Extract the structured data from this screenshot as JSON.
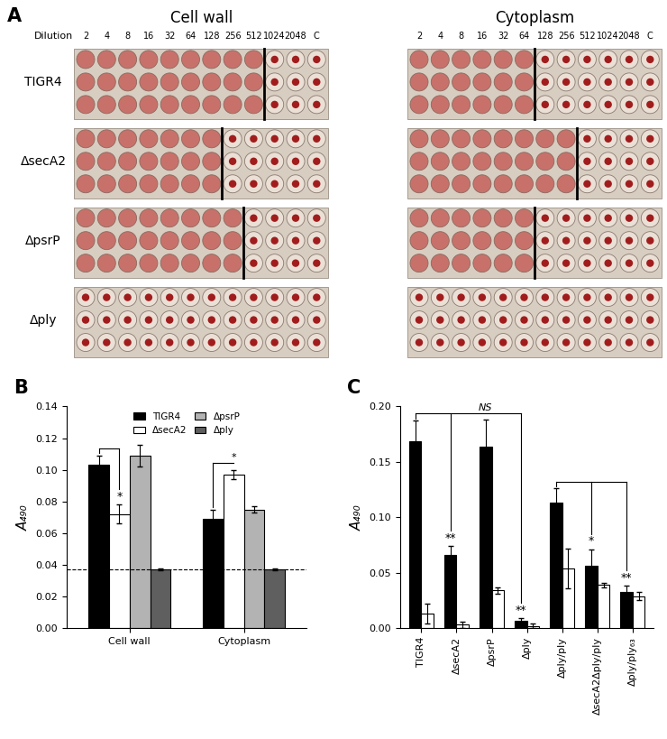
{
  "chart_data": [
    {
      "type": "plate",
      "panel": "A",
      "column_title": "Dilution",
      "columns": [
        "2",
        "4",
        "8",
        "16",
        "32",
        "64",
        "128",
        "256",
        "512",
        "1024",
        "2048",
        "C"
      ],
      "replicates": 3,
      "rows": [
        "TIGR4",
        "ΔsecA2",
        "ΔpsrP",
        "Δply"
      ],
      "fractions": [
        {
          "title": "Cell wall",
          "last_lysed": [
            "512",
            "128",
            "256",
            null
          ]
        },
        {
          "title": "Cytoplasm",
          "last_lysed": [
            "64",
            "256",
            "64",
            null
          ]
        }
      ]
    },
    {
      "type": "bar",
      "panel": "B",
      "y_label": "A₄₉₀",
      "categories": [
        "Cell wall",
        "Cytoplasm"
      ],
      "series": [
        {
          "name": "TIGR4",
          "color": "#000000",
          "values": [
            0.103,
            0.069
          ],
          "errors": [
            0.006,
            0.006
          ]
        },
        {
          "name": "ΔsecA2",
          "color": "#ffffff",
          "values": [
            0.072,
            0.097
          ],
          "errors": [
            0.006,
            0.003
          ]
        },
        {
          "name": "ΔpsrP",
          "color": "#b3b3b3",
          "values": [
            0.109,
            0.075
          ],
          "errors": [
            0.007,
            0.002
          ]
        },
        {
          "name": "Δply",
          "color": "#5f5f5f",
          "values": [
            0.037,
            0.037
          ],
          "errors": [
            0.0005,
            0.0005
          ]
        }
      ],
      "reference_line": 0.037,
      "ylim": [
        0,
        0.14
      ],
      "yticks": [
        {
          "value": 0,
          "label": "0.00"
        },
        {
          "value": 0.02,
          "label": "0.02"
        },
        {
          "value": 0.04,
          "label": "0.04"
        },
        {
          "value": 0.06,
          "label": "0.06"
        },
        {
          "value": 0.08,
          "label": "0.08"
        },
        {
          "value": 0.1,
          "label": "0.10"
        },
        {
          "value": 0.12,
          "label": "0.12"
        },
        {
          "value": 0.14,
          "label": "0.14"
        }
      ],
      "legend": "upper center",
      "comparisons": [
        {
          "category": "Cell wall",
          "from": "TIGR4",
          "to": [
            "ΔsecA2"
          ],
          "labels": [
            "*"
          ]
        },
        {
          "category": "Cytoplasm",
          "from": "TIGR4",
          "to": [
            "ΔsecA2"
          ],
          "labels": [
            "*"
          ]
        }
      ]
    },
    {
      "type": "bar",
      "panel": "C",
      "y_label": "A₄₉₀",
      "categories": [
        "TIGR4",
        "ΔsecA2",
        "ΔpsrP",
        "Δply",
        "Δply/ply",
        "ΔsecA2Δply/ply",
        "Δply/ply₆₃"
      ],
      "series": [
        {
          "color": "#000000",
          "values": [
            0.169,
            0.066,
            0.164,
            0.007,
            0.113,
            0.056,
            0.033
          ],
          "errors": [
            0.018,
            0.008,
            0.024,
            0.002,
            0.013,
            0.015,
            0.005
          ]
        },
        {
          "color": "#ffffff",
          "values": [
            0.013,
            0.003,
            0.034,
            0.002,
            0.054,
            0.039,
            0.029
          ],
          "errors": [
            0.009,
            0.003,
            0.003,
            0.002,
            0.018,
            0.002,
            0.004
          ]
        }
      ],
      "ylim": [
        0,
        0.2
      ],
      "yticks": [
        {
          "value": 0,
          "label": "0.00"
        },
        {
          "value": 0.05,
          "label": "0.05"
        },
        {
          "value": 0.1,
          "label": "0.10"
        },
        {
          "value": 0.15,
          "label": "0.15"
        },
        {
          "value": 0.2,
          "label": "0.20"
        }
      ],
      "comparisons": [
        {
          "from": "TIGR4",
          "to": [
            "ΔsecA2",
            "ΔpsrP",
            "Δply"
          ],
          "labels": [
            "**",
            "NS",
            "**"
          ]
        },
        {
          "from": "Δply/ply",
          "to": [
            "ΔsecA2Δply/ply",
            "Δply/ply₆₃"
          ],
          "labels": [
            "*",
            "**"
          ]
        }
      ]
    }
  ]
}
